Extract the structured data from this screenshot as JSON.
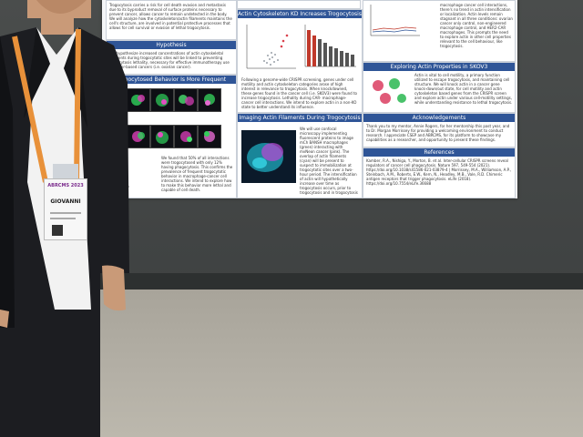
{
  "poster": {
    "headers": {
      "hypothesis": "Hypothesis",
      "behavior": "Trogocytosed Behavior Is More Frequent",
      "actin_ko": "Actin Cytoskeleton KD Increases Trogocytosis",
      "imaging": "Imaging Actin Filaments During Trogocytosis",
      "skov3": "Exploring Actin Properties in SKOV3",
      "ack": "Acknowledgements",
      "refs": "References"
    },
    "intro_text": "Trogocytosis carries a risk for cell death evasion and metastasis due to its byproduct removal of surface proteins necessary to prevent cancer, allows cancer to remain undetected in the body. We will analyze how the cytoskeleton/actin filaments maintains the cell's structure, are involved in potential protective processes that allows for cell survival or evasion of lethal trogocytosis.",
    "hypothesis_text": "We hypothesize increased concentrations of actin cytoskeletal filaments during trogocytotic sites will be linked to preventing trogocytosis lethality, necessary for effective immunotherapy use in tumor-based cancers (i.e. ovarian cancer).",
    "behavior_text": "We found that 50% of all interactions were trogocytosed with only 12% having phagocytosis. This confirms the prevalence of frequent trogocytotic behavior in macrophage-cancer cell interactions. We intend to explore how to make this behavior more lethal and capable of cell death.",
    "actin_text": "Following a genome-wide CRISPR screening, genes under cell motility and actin cytoskeleton categories arose of high interest in relevance to trogocytosis. When knockdowned, these genes found in the cancer cell (i.e. SKOV3) were found to increase trogocytosis. Lethality during CAR- macrophage-cancer cell interactions. We intend to explore actin in a non-KO state to better understand its influence.",
    "imaging_text": "We will use confocal microscopy implementing fluorescent proteins to image mCh BANSH macrophages (green) interacting with mvNeon cancer (pink). The overlap of actin filaments (cyan) will be present to suspect to immobilization at trogocytotic sites over a two-hour period. The intensification of actin will hypothetically increase over time as trogocytosis occurs, prior to trogocytosis and in trogocytosis occurs.",
    "right_top_text": "macrophage cancer cell interactions, there's no trend in actin intensification or localization. Actin levels remain stagnant in all three conditions: ovarian cancer only control, non-engineered macrophage control, and HER2-CAR macrophages. This prompts the need to explore actin in other cell properties relevant to the cell behaviour, like trogocytosis.",
    "skov3_text": "Actin is vital to cell motility, a primary function utilized to escape trogocytosis, and maintaining cell structure. We will knock actin in a cancer gene knock-down/out state, for cell motility and actin cytoskeleton based genes from the CRISPR screen and explore actin under various cell-motility settings, while understanding resistance to lethal trogocytosis.",
    "ack_text": "Thank you to my mentor, Annie Rogers, for her mentorship this past year, and to Dr. Morgan Morrissey for providing a welcoming environment to conduct research. I appreciate CSEP and ABRCMS, for its platform to showcase my capabilities as a researcher, and opportunity to present these findings.",
    "refs_text": "Kamber, R.A., Nishiga, Y., Morton, B. et al. Inter-cellular CRISPR screens reveal regulators of cancer cell phagocytosis. Nature 597, 549-554 (2021). https://doi.org/10.1038/s41586-021-03879-4 | Morrissey, M.A., Williamson, A.P., Steinbach, A.M., Roberts, E.W., Kern, N., Headley, M.B., Vale, R.D. Chimeric antigen receptors that trigger phagocytosis. eLife (2018). https://doi.org/10.7554/eLife.36688"
  },
  "badge": {
    "event": "ABRCMS 2023",
    "name": "GIOVANNI"
  },
  "colors": {
    "header_blue": "#2f5597",
    "poster_bg": "#f4f5f7",
    "wall": "#45484a",
    "floor": "#b0ac a2",
    "lanyard": "#e8913a"
  }
}
